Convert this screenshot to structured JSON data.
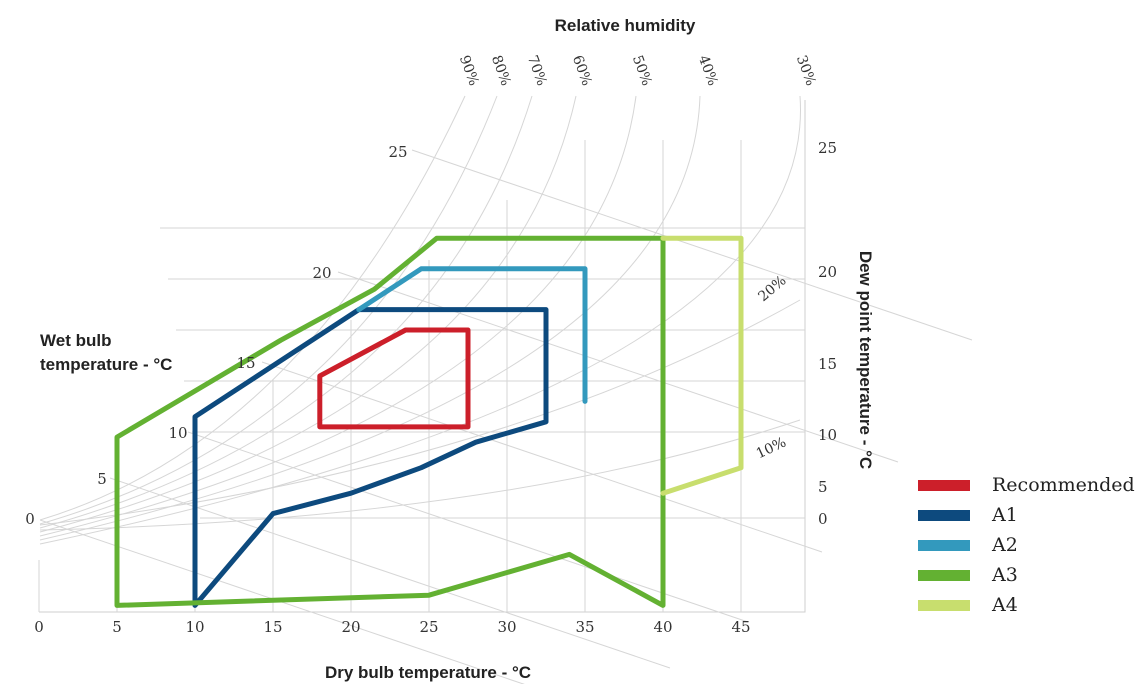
{
  "chart_data": {
    "type": "psychrometric",
    "title": "",
    "axes": {
      "x": {
        "label": "Dry bulb temperature - °C",
        "ticks": [
          0,
          5,
          10,
          15,
          20,
          25,
          30,
          35,
          40,
          45
        ]
      },
      "wet_bulb": {
        "label": "Wet bulb temperature - °C",
        "ticks": [
          0,
          5,
          10,
          15,
          20,
          25
        ]
      },
      "dew_point": {
        "label": "Dew point temperature - °C",
        "ticks": [
          0,
          5,
          10,
          15,
          20,
          25
        ]
      },
      "relative_humidity": {
        "label": "Relative humidity",
        "ticks": [
          "90%",
          "80%",
          "70%",
          "60%",
          "50%",
          "40%",
          "30%"
        ],
        "inner_ticks": [
          "20%",
          "10%"
        ]
      }
    },
    "series": [
      {
        "name": "Recommended",
        "color": "#cc1f2a",
        "points": [
          [
            18,
            5.5
          ],
          [
            18,
            10.5
          ],
          [
            23.5,
            15
          ],
          [
            27.5,
            15
          ],
          [
            27.5,
            5.5
          ],
          [
            18,
            5.5
          ]
        ]
      },
      {
        "name": "A1",
        "color": "#0d4a7e",
        "points": [
          [
            10,
            -12
          ],
          [
            10,
            6.5
          ],
          [
            20.5,
            17
          ],
          [
            32.5,
            17
          ],
          [
            32.5,
            6
          ],
          [
            28,
            4
          ],
          [
            24.5,
            1.5
          ],
          [
            20,
            -1
          ],
          [
            15,
            -3
          ],
          [
            10,
            -12
          ]
        ]
      },
      {
        "name": "A2",
        "color": "#3399bd",
        "points": [
          [
            20.5,
            17
          ],
          [
            24.5,
            21
          ],
          [
            35,
            21
          ],
          [
            35,
            8
          ]
        ]
      },
      {
        "name": "A3",
        "color": "#63b132",
        "points": [
          [
            5,
            -12
          ],
          [
            5,
            4.5
          ],
          [
            15.5,
            14
          ],
          [
            21.5,
            19
          ],
          [
            25.5,
            24
          ],
          [
            40,
            24
          ],
          [
            40,
            -12
          ],
          [
            34,
            -7
          ],
          [
            25,
            -11
          ],
          [
            5,
            -12
          ]
        ]
      },
      {
        "name": "A4",
        "color": "#c8de6e",
        "points": [
          [
            40,
            24
          ],
          [
            45,
            24
          ],
          [
            45,
            1.5
          ],
          [
            40,
            -1
          ]
        ]
      }
    ],
    "legend_position": "right"
  },
  "labels": {
    "rh_title": "Relative humidity",
    "wet_bulb_line1": "Wet bulb",
    "wet_bulb_line2": "temperature - °C",
    "x_title": "Dry bulb temperature - °C",
    "dew_title": "Dew point temperature - °C"
  }
}
